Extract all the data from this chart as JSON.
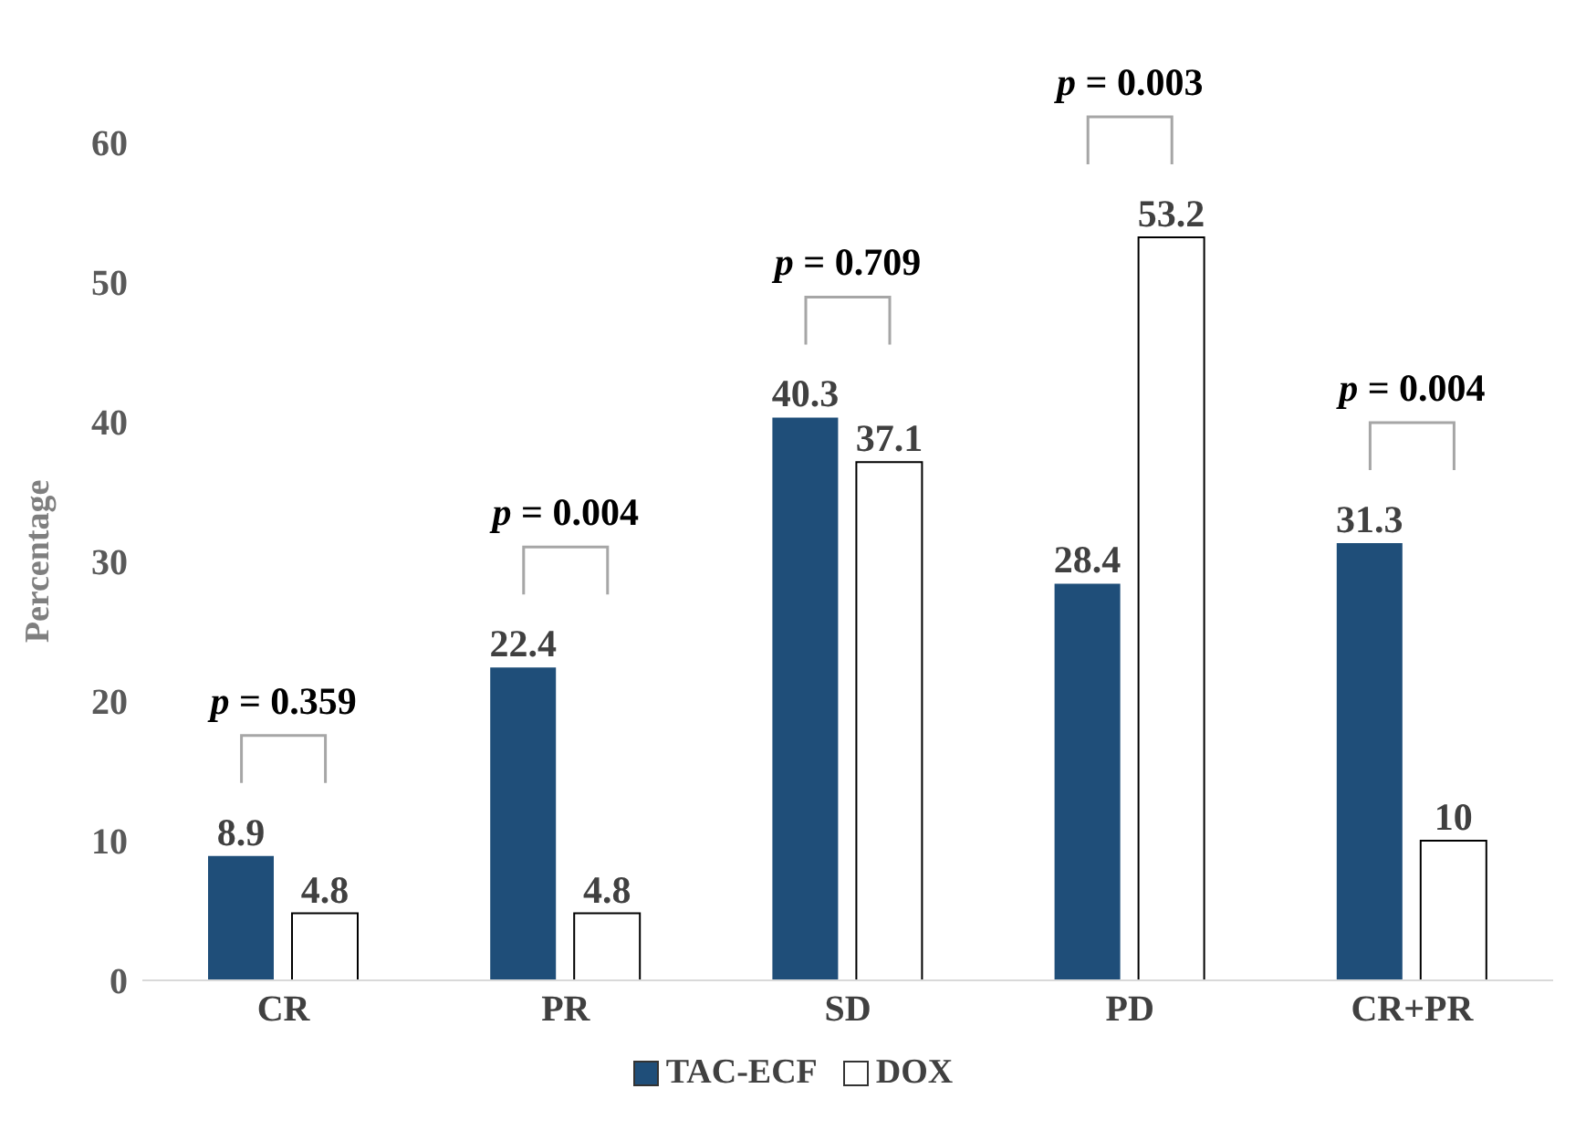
{
  "chart_data": {
    "type": "bar",
    "ylabel": "Percentage",
    "categories": [
      "CR",
      "PR",
      "SD",
      "PD",
      "CR+PR"
    ],
    "series": [
      {
        "name": "TAC-ECF",
        "color": "#1f4e79",
        "values": [
          8.9,
          22.4,
          40.3,
          28.4,
          31.3
        ]
      },
      {
        "name": "DOX",
        "color": "#ffffff",
        "values": [
          4.8,
          4.8,
          37.1,
          53.2,
          10
        ]
      }
    ],
    "ylim": [
      0,
      60
    ],
    "yticks": [
      0,
      10,
      20,
      30,
      40,
      50,
      60
    ],
    "grid": false,
    "legend": "bottom",
    "data_labels": true,
    "annotations": [
      "p = 0.359",
      "p = 0.004",
      "p = 0.709",
      "p = 0.003",
      "p = 0.004"
    ]
  }
}
